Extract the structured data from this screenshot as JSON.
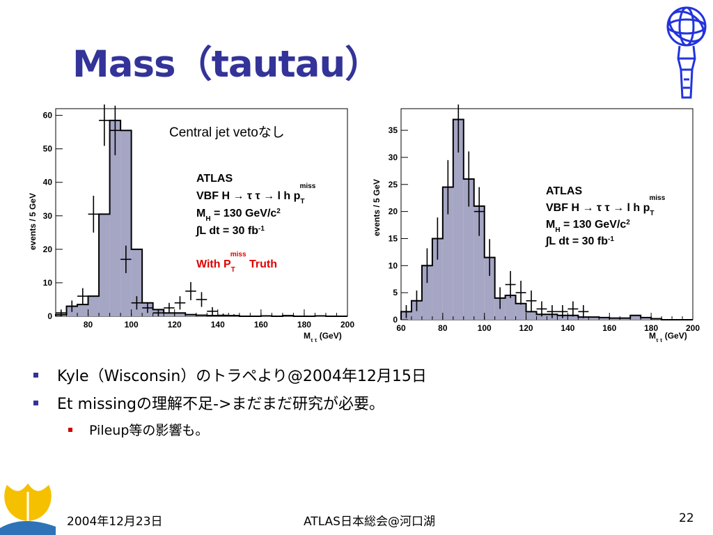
{
  "slide": {
    "title": "Mass（tautau）",
    "bullets": [
      "Kyle（Wisconsin）のトラペより@2004年12月15日",
      "Et missingの理解不足->まだまだ研究が必要。"
    ],
    "sub_bullets": [
      "Pileup等の影響も。"
    ],
    "footer": {
      "date": "2004年12月23日",
      "venue": "ATLAS日本総会@河口湖",
      "page": "22"
    },
    "colors": {
      "title": "#333399",
      "bullet": "#333399",
      "sub_bullet": "#cc0000",
      "hist_fill": "#a5a5c4",
      "red_note": "#e00000"
    }
  },
  "chart_data": [
    {
      "type": "bar",
      "title": "",
      "annotation": "Central jet vetoなし",
      "label_lines": [
        "ATLAS",
        "VBF H → τ τ → l h p",
        "M",
        "∫L dt = 30 fb"
      ],
      "label_parts": {
        "ptsub": "T",
        "ptsup": "miss",
        "mh_sub": "H",
        "mh_rest": " = 130 GeV/c",
        "mh_sup": "2",
        "lumi_sup": "-1"
      },
      "truth_label": {
        "pre": "With P",
        "sub": "T",
        "sup": "miss",
        "post": " Truth"
      },
      "xlabel": "M",
      "xlabel_sub": "τ τ",
      "xlabel_unit": " (GeV)",
      "ylabel": "events / 5 GeV",
      "xlim": [
        65,
        200
      ],
      "ylim": [
        0,
        62
      ],
      "xticks": [
        80,
        100,
        120,
        140,
        160,
        180,
        200
      ],
      "yticks": [
        0,
        10,
        20,
        30,
        40,
        50,
        60
      ],
      "bin_edges": [
        65,
        70,
        75,
        80,
        85,
        90,
        95,
        100,
        105,
        110,
        115,
        120,
        125,
        130,
        135,
        140,
        145,
        150,
        155,
        160,
        165,
        170,
        175,
        180,
        185,
        190,
        195,
        200
      ],
      "histogram": [
        0.5,
        3,
        3.5,
        6,
        30.5,
        58.5,
        55.5,
        20,
        4,
        2,
        1,
        1,
        0.5,
        0.3,
        0.2,
        0.1,
        0.2,
        0,
        0,
        0.1,
        0,
        0.2,
        0,
        0,
        0.1,
        0,
        0
      ],
      "points": [
        {
          "x": 67.5,
          "y": 1,
          "err": 1
        },
        {
          "x": 72.5,
          "y": 3,
          "err": 1.7
        },
        {
          "x": 77.5,
          "y": 6,
          "err": 2.4
        },
        {
          "x": 82.5,
          "y": 30.5,
          "err": 5.5
        },
        {
          "x": 87.5,
          "y": 58.5,
          "err": 7.6
        },
        {
          "x": 92.5,
          "y": 55.5,
          "err": 7.4
        },
        {
          "x": 97.5,
          "y": 17,
          "err": 4.1
        },
        {
          "x": 102.5,
          "y": 4,
          "err": 2
        },
        {
          "x": 107.5,
          "y": 2.5,
          "err": 1.5
        },
        {
          "x": 112.5,
          "y": 1,
          "err": 1
        },
        {
          "x": 117.5,
          "y": 2.5,
          "err": 1.5
        },
        {
          "x": 122.5,
          "y": 4,
          "err": 2
        },
        {
          "x": 127.5,
          "y": 7.5,
          "err": 2.7
        },
        {
          "x": 132.5,
          "y": 5,
          "err": 2.2
        },
        {
          "x": 137.5,
          "y": 1.5,
          "err": 1.2
        },
        {
          "x": 142.5,
          "y": 0.3,
          "err": 0.5
        },
        {
          "x": 147.5,
          "y": 0.2,
          "err": 0.4
        }
      ]
    },
    {
      "type": "bar",
      "title": "",
      "label_lines": [
        "ATLAS",
        "VBF H → τ τ → l h p",
        "M",
        "∫L dt = 30 fb"
      ],
      "label_parts": {
        "ptsub": "T",
        "ptsup": "miss",
        "mh_sub": "H",
        "mh_rest": " = 130 GeV/c",
        "mh_sup": "2",
        "lumi_sup": "-1"
      },
      "xlabel": "M",
      "xlabel_sub": "τ τ",
      "xlabel_unit": " (GeV)",
      "ylabel": "events / 5 GeV",
      "xlim": [
        60,
        200
      ],
      "ylim": [
        0,
        39
      ],
      "xticks": [
        60,
        80,
        100,
        120,
        140,
        160,
        180,
        200
      ],
      "yticks": [
        0,
        5,
        10,
        15,
        20,
        25,
        30,
        35
      ],
      "bin_edges": [
        60,
        65,
        70,
        75,
        80,
        85,
        90,
        95,
        100,
        105,
        110,
        115,
        120,
        125,
        130,
        135,
        140,
        145,
        150,
        155,
        160,
        165,
        170,
        175,
        180,
        185,
        190,
        195,
        200
      ],
      "histogram": [
        1.5,
        3.5,
        10,
        15,
        24.5,
        37,
        26,
        21,
        11.5,
        4,
        4.5,
        3,
        1.5,
        1,
        1,
        0.8,
        0.8,
        0.5,
        0.5,
        0.4,
        0.3,
        0.3,
        0.8,
        0.4,
        0.2,
        0,
        0,
        0
      ],
      "points": [
        {
          "x": 62.5,
          "y": 1.5,
          "err": 1.2
        },
        {
          "x": 67.5,
          "y": 3.5,
          "err": 1.9
        },
        {
          "x": 72.5,
          "y": 10,
          "err": 3.2
        },
        {
          "x": 77.5,
          "y": 15,
          "err": 3.9
        },
        {
          "x": 82.5,
          "y": 24.5,
          "err": 5
        },
        {
          "x": 87.5,
          "y": 37,
          "err": 6.1
        },
        {
          "x": 92.5,
          "y": 26,
          "err": 5.1
        },
        {
          "x": 97.5,
          "y": 20,
          "err": 4.5
        },
        {
          "x": 102.5,
          "y": 11.5,
          "err": 3.4
        },
        {
          "x": 107.5,
          "y": 4,
          "err": 2
        },
        {
          "x": 112.5,
          "y": 6.5,
          "err": 2.5
        },
        {
          "x": 117.5,
          "y": 5,
          "err": 2.2
        },
        {
          "x": 122.5,
          "y": 3.5,
          "err": 1.9
        },
        {
          "x": 127.5,
          "y": 2,
          "err": 1.4
        },
        {
          "x": 132.5,
          "y": 1.5,
          "err": 1.2
        },
        {
          "x": 137.5,
          "y": 1.5,
          "err": 1.2
        },
        {
          "x": 142.5,
          "y": 2,
          "err": 1.4
        },
        {
          "x": 147.5,
          "y": 1.5,
          "err": 1.2
        }
      ]
    }
  ]
}
